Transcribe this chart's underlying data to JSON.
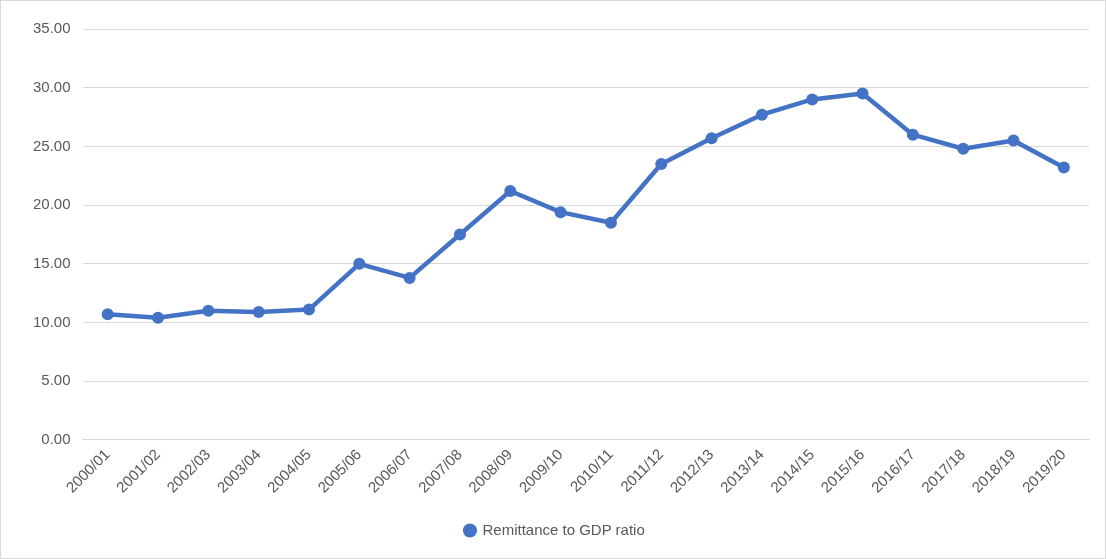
{
  "chart_data": {
    "type": "line",
    "categories": [
      "2000/01",
      "2001/02",
      "2002/03",
      "2003/04",
      "2004/05",
      "2005/06",
      "2006/07",
      "2007/08",
      "2008/09",
      "2009/10",
      "2010/11",
      "2011/12",
      "2012/13",
      "2013/14",
      "2014/15",
      "2015/16",
      "2016/17",
      "2017/18",
      "2018/19",
      "2019/20"
    ],
    "series": [
      {
        "name": "Remittance to GDP ratio",
        "color": "#4472c4",
        "values": [
          10.7,
          10.4,
          11.0,
          10.9,
          11.1,
          15.0,
          13.8,
          17.5,
          21.2,
          19.4,
          18.5,
          23.5,
          25.7,
          27.7,
          29.0,
          29.5,
          26.0,
          24.8,
          25.5,
          23.2
        ]
      }
    ],
    "ylim": [
      0,
      35
    ],
    "yticks": [
      {
        "value": 0,
        "label": "0.00"
      },
      {
        "value": 5,
        "label": "5.00"
      },
      {
        "value": 10,
        "label": "10.00"
      },
      {
        "value": 15,
        "label": "15.00"
      },
      {
        "value": 20,
        "label": "20.00"
      },
      {
        "value": 25,
        "label": "25.00"
      },
      {
        "value": 30,
        "label": "30.00"
      },
      {
        "value": 35,
        "label": "35.00"
      }
    ],
    "grid": "y",
    "legend": "bottom",
    "marker": "circle",
    "line_style": "solid"
  }
}
